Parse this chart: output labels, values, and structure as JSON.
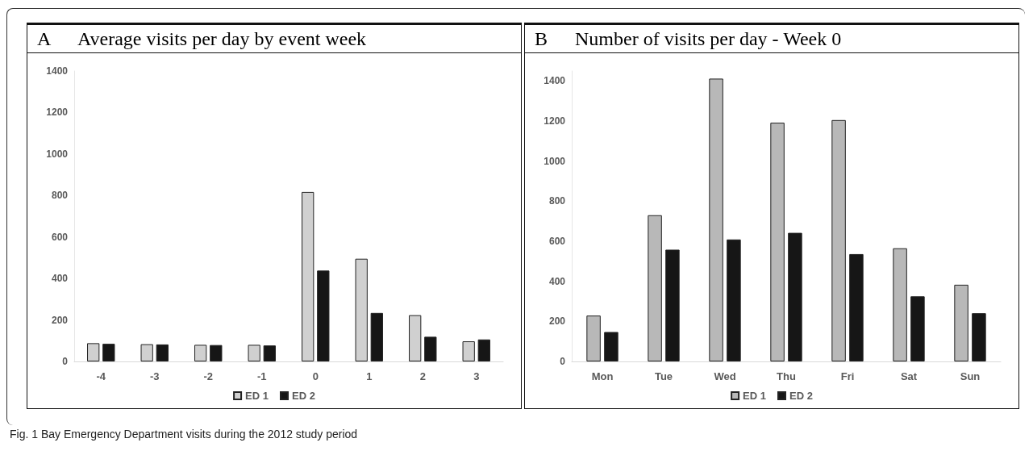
{
  "chart_data": [
    {
      "type": "bar",
      "title": "Average visits per day by event week",
      "annotations": [
        "A",
        "Fig. 1 Bay Emergency Department visits during the 2012 study period"
      ],
      "categories": [
        "-4",
        "-3",
        "-2",
        "-1",
        "0",
        "1",
        "2",
        "3"
      ],
      "series": [
        {
          "name": "ED 1",
          "color": "#d0d0d0",
          "values": [
            88,
            83,
            80,
            80,
            817,
            495,
            223,
            97
          ]
        },
        {
          "name": "ED 2",
          "color": "#161616",
          "values": [
            85,
            82,
            79,
            77,
            438,
            234,
            119,
            106
          ]
        }
      ],
      "ylim": [
        0,
        1400
      ],
      "yticks": [
        0,
        200,
        400,
        600,
        800,
        1000,
        1200,
        1400
      ],
      "grid": false,
      "legend": "bottom"
    },
    {
      "type": "bar",
      "title": "Number of visits per day - Week 0",
      "annotations": [
        "B"
      ],
      "categories": [
        "Mon",
        "Tue",
        "Wed",
        "Thu",
        "Fri",
        "Sat",
        "Sun"
      ],
      "series": [
        {
          "name": "ED 1",
          "color": "#b8b8b8",
          "values": [
            229,
            730,
            1412,
            1192,
            1205,
            565,
            383
          ]
        },
        {
          "name": "ED 2",
          "color": "#161616",
          "values": [
            147,
            558,
            609,
            642,
            536,
            325,
            241
          ]
        }
      ],
      "ylim": [
        0,
        1450
      ],
      "yticks": [
        0,
        200,
        400,
        600,
        800,
        1000,
        1200,
        1400
      ],
      "grid": false,
      "legend": "bottom"
    }
  ]
}
